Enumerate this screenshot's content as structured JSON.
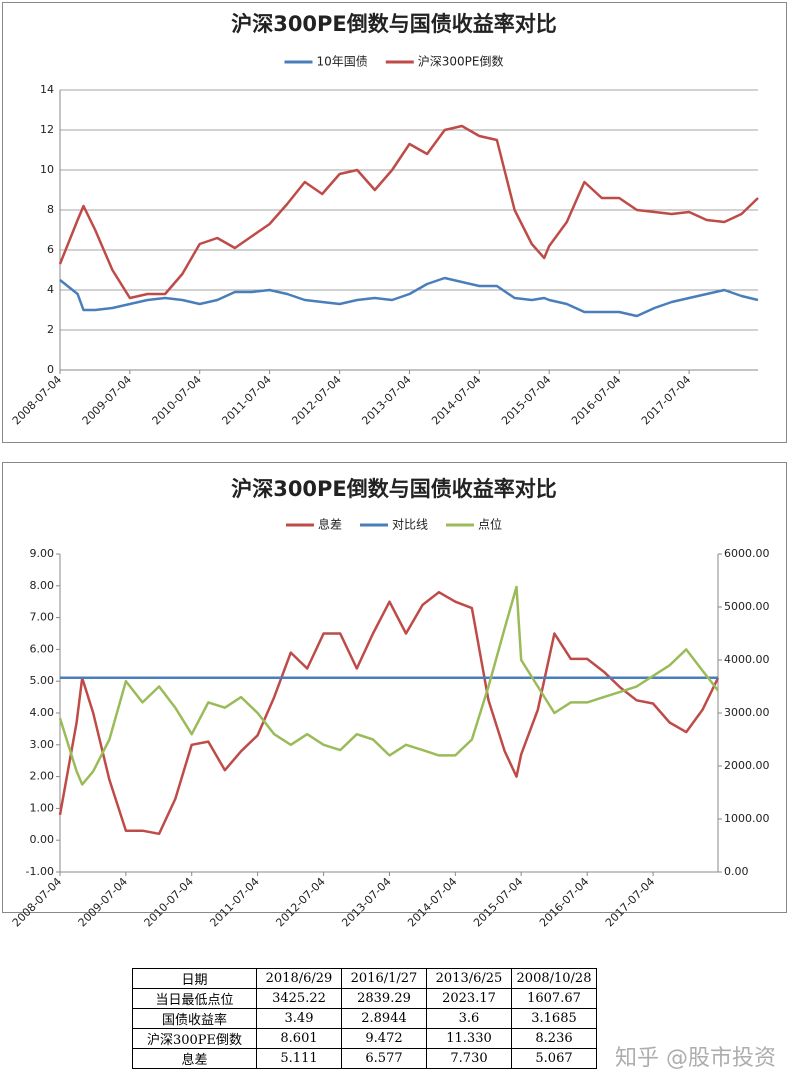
{
  "chart_data": [
    {
      "type": "line",
      "title": "沪深300PE倒数与国债收益率对比",
      "x": [
        "2008-07-04",
        "2008-10-04",
        "2008-11-04",
        "2009-01-04",
        "2009-04-04",
        "2009-07-04",
        "2009-10-04",
        "2010-01-04",
        "2010-04-04",
        "2010-07-04",
        "2010-10-04",
        "2011-01-04",
        "2011-04-04",
        "2011-07-04",
        "2011-10-04",
        "2012-01-04",
        "2012-04-04",
        "2012-07-04",
        "2012-10-04",
        "2013-01-04",
        "2013-04-04",
        "2013-07-04",
        "2013-10-04",
        "2014-01-04",
        "2014-04-04",
        "2014-07-04",
        "2014-10-04",
        "2015-01-04",
        "2015-04-04",
        "2015-06-08",
        "2015-07-04",
        "2015-10-04",
        "2016-01-04",
        "2016-04-04",
        "2016-07-04",
        "2016-10-04",
        "2017-01-04",
        "2017-04-04",
        "2017-07-04",
        "2017-10-04",
        "2018-01-04",
        "2018-04-04",
        "2018-06-29"
      ],
      "series": [
        {
          "name": "10年国债",
          "color": "#4a7ebb",
          "values": [
            4.5,
            3.8,
            3.0,
            3.0,
            3.1,
            3.3,
            3.5,
            3.6,
            3.5,
            3.3,
            3.5,
            3.9,
            3.9,
            4.0,
            3.8,
            3.5,
            3.4,
            3.3,
            3.5,
            3.6,
            3.5,
            3.8,
            4.3,
            4.6,
            4.4,
            4.2,
            4.2,
            3.6,
            3.5,
            3.6,
            3.5,
            3.3,
            2.9,
            2.9,
            2.9,
            2.7,
            3.1,
            3.4,
            3.6,
            3.8,
            4.0,
            3.7,
            3.5
          ]
        },
        {
          "name": "沪深300PE倒数",
          "color": "#be4b48",
          "values": [
            5.3,
            7.5,
            8.2,
            7.0,
            5.0,
            3.6,
            3.8,
            3.8,
            4.8,
            6.3,
            6.6,
            6.1,
            6.7,
            7.3,
            8.3,
            9.4,
            8.8,
            9.8,
            10.0,
            9.0,
            10.0,
            11.3,
            10.8,
            12.0,
            12.2,
            11.7,
            11.5,
            8.0,
            6.3,
            5.6,
            6.2,
            7.4,
            9.4,
            8.6,
            8.6,
            8.0,
            7.9,
            7.8,
            7.9,
            7.5,
            7.4,
            7.8,
            8.6
          ]
        }
      ],
      "xlim": [
        "2008-07-04",
        "2018-06-29"
      ],
      "xticks": [
        "2008-07-04",
        "2009-07-04",
        "2010-07-04",
        "2011-07-04",
        "2012-07-04",
        "2013-07-04",
        "2014-07-04",
        "2015-07-04",
        "2016-07-04",
        "2017-07-04"
      ],
      "ylim": [
        0,
        14
      ],
      "yticks": [
        0,
        2,
        4,
        6,
        8,
        10,
        12,
        14
      ],
      "grid": true,
      "legend": "top"
    },
    {
      "type": "line",
      "title": "沪深300PE倒数与国债收益率对比",
      "x": [
        "2008-07-04",
        "2008-10-04",
        "2008-11-04",
        "2009-01-04",
        "2009-04-04",
        "2009-07-04",
        "2009-10-04",
        "2010-01-04",
        "2010-04-04",
        "2010-07-04",
        "2010-10-04",
        "2011-01-04",
        "2011-04-04",
        "2011-07-04",
        "2011-10-04",
        "2012-01-04",
        "2012-04-04",
        "2012-07-04",
        "2012-10-04",
        "2013-01-04",
        "2013-04-04",
        "2013-07-04",
        "2013-10-04",
        "2014-01-04",
        "2014-04-04",
        "2014-07-04",
        "2014-10-04",
        "2015-01-04",
        "2015-04-04",
        "2015-06-08",
        "2015-07-04",
        "2015-10-04",
        "2016-01-04",
        "2016-04-04",
        "2016-07-04",
        "2016-10-04",
        "2017-01-04",
        "2017-04-04",
        "2017-07-04",
        "2017-10-04",
        "2018-01-04",
        "2018-04-04",
        "2018-06-29"
      ],
      "series": [
        {
          "name": "息差",
          "color": "#be4b48",
          "values": [
            0.8,
            3.7,
            5.1,
            4.0,
            1.9,
            0.3,
            0.3,
            0.2,
            1.3,
            3.0,
            3.1,
            2.2,
            2.8,
            3.3,
            4.5,
            5.9,
            5.4,
            6.5,
            6.5,
            5.4,
            6.5,
            7.5,
            6.5,
            7.4,
            7.8,
            7.5,
            7.3,
            4.4,
            2.8,
            2.0,
            2.7,
            4.1,
            6.5,
            5.7,
            5.7,
            5.3,
            4.8,
            4.4,
            4.3,
            3.7,
            3.4,
            4.1,
            5.1
          ]
        },
        {
          "name": "对比线",
          "color": "#4a7ebb",
          "values": [
            5.111,
            5.111,
            5.111,
            5.111,
            5.111,
            5.111,
            5.111,
            5.111,
            5.111,
            5.111,
            5.111,
            5.111,
            5.111,
            5.111,
            5.111,
            5.111,
            5.111,
            5.111,
            5.111,
            5.111,
            5.111,
            5.111,
            5.111,
            5.111,
            5.111,
            5.111,
            5.111,
            5.111,
            5.111,
            5.111,
            5.111,
            5.111,
            5.111,
            5.111,
            5.111,
            5.111,
            5.111,
            5.111,
            5.111,
            5.111,
            5.111,
            5.111,
            5.111
          ]
        },
        {
          "name": "点位",
          "color": "#9bbb59",
          "axis": "y2",
          "values": [
            2900,
            1900,
            1650,
            1900,
            2500,
            3600,
            3200,
            3500,
            3100,
            2600,
            3200,
            3100,
            3300,
            3000,
            2600,
            2400,
            2600,
            2400,
            2300,
            2600,
            2500,
            2200,
            2400,
            2300,
            2200,
            2200,
            2500,
            3500,
            4600,
            5380,
            4000,
            3500,
            3000,
            3200,
            3200,
            3300,
            3400,
            3500,
            3700,
            3900,
            4200,
            3800,
            3425
          ]
        }
      ],
      "xlim": [
        "2008-07-04",
        "2018-06-29"
      ],
      "xticks": [
        "2008-07-04",
        "2009-07-04",
        "2010-07-04",
        "2011-07-04",
        "2012-07-04",
        "2013-07-04",
        "2014-07-04",
        "2015-07-04",
        "2016-07-04",
        "2017-07-04"
      ],
      "ylim": [
        -1,
        9
      ],
      "yticks": [
        {
          "value": -1,
          "label": "-1.00"
        },
        {
          "value": 0,
          "label": "0.00"
        },
        {
          "value": 1,
          "label": "1.00"
        },
        {
          "value": 2,
          "label": "2.00"
        },
        {
          "value": 3,
          "label": "3.00"
        },
        {
          "value": 4,
          "label": "4.00"
        },
        {
          "value": 5,
          "label": "5.00"
        },
        {
          "value": 6,
          "label": "6.00"
        },
        {
          "value": 7,
          "label": "7.00"
        },
        {
          "value": 8,
          "label": "8.00"
        },
        {
          "value": 9,
          "label": "9.00"
        }
      ],
      "y2lim": [
        0,
        6000
      ],
      "y2ticks": [
        {
          "value": 0,
          "label": "0.00"
        },
        {
          "value": 1000,
          "label": "1000.00"
        },
        {
          "value": 2000,
          "label": "2000.00"
        },
        {
          "value": 3000,
          "label": "3000.00"
        },
        {
          "value": 4000,
          "label": "4000.00"
        },
        {
          "value": 5000,
          "label": "5000.00"
        },
        {
          "value": 6000,
          "label": "6000.00"
        }
      ],
      "grid": false,
      "legend": "top"
    }
  ],
  "table": {
    "header": [
      "日期",
      "2018/6/29",
      "2016/1/27",
      "2013/6/25",
      "2008/10/28"
    ],
    "rows": [
      [
        "当日最低点位",
        "3425.22",
        "2839.29",
        "2023.17",
        "1607.67"
      ],
      [
        "国债收益率",
        "3.49",
        "2.8944",
        "3.6",
        "3.1685"
      ],
      [
        "沪深300PE倒数",
        "8.601",
        "9.472",
        "11.330",
        "8.236"
      ],
      [
        "息差",
        "5.111",
        "6.577",
        "7.730",
        "5.067"
      ]
    ]
  },
  "watermark": "知乎 @股市投资"
}
